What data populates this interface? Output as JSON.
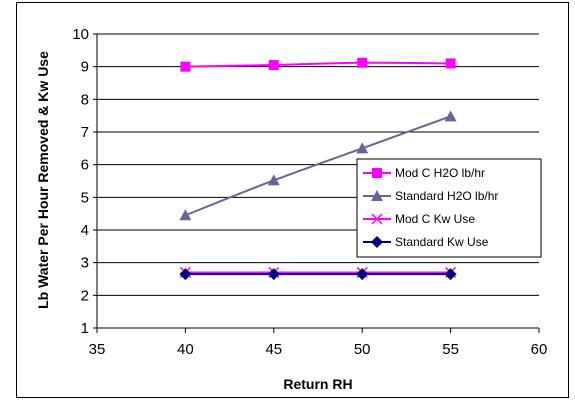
{
  "chart_data": {
    "type": "line",
    "title": "",
    "xlabel": "Return RH",
    "ylabel": "Lb Water Per Hour Removed & Kw Use",
    "xlim": [
      35,
      60
    ],
    "ylim": [
      1,
      10
    ],
    "x_ticks": [
      35,
      40,
      45,
      50,
      55,
      60
    ],
    "y_ticks": [
      1,
      2,
      3,
      4,
      5,
      6,
      7,
      8,
      9,
      10
    ],
    "grid": "horizontal",
    "legend_position": "right",
    "x": [
      40,
      45,
      50,
      55
    ],
    "series": [
      {
        "name": "Mod C H2O lb/hr",
        "values": [
          9.0,
          9.05,
          9.12,
          9.1
        ],
        "color": "#FF00FF",
        "marker": "square",
        "smooth": true
      },
      {
        "name": "Standard H2O lb/hr",
        "values": [
          4.45,
          5.52,
          6.5,
          7.48
        ],
        "color": "#666699",
        "marker": "triangle",
        "smooth": true
      },
      {
        "name": "Mod C Kw Use",
        "values": [
          2.7,
          2.7,
          2.7,
          2.7
        ],
        "color": "#FF00FF",
        "marker": "x",
        "smooth": false
      },
      {
        "name": "Standard Kw Use",
        "values": [
          2.65,
          2.65,
          2.65,
          2.65
        ],
        "color": "#000080",
        "marker": "diamond",
        "smooth": false
      }
    ]
  }
}
